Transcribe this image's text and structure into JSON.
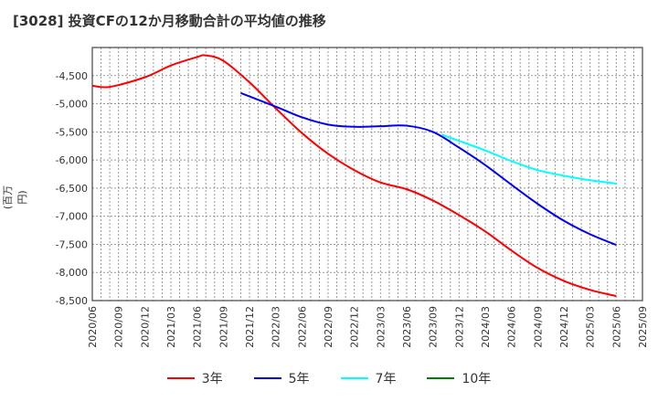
{
  "chart_data": {
    "type": "line",
    "title": "[3028]  投資CFの12か月移動合計の平均値の推移",
    "ylabel": "(百万円)",
    "xlabel": "",
    "ylim": [
      -8500,
      -4000
    ],
    "yticks": [
      -4500,
      -5000,
      -5500,
      -6000,
      -6500,
      -7000,
      -7500,
      -8000,
      -8500
    ],
    "ytick_labels": [
      "-4,500",
      "-5,000",
      "-5,500",
      "-6,000",
      "-6,500",
      "-7,000",
      "-7,500",
      "-8,000",
      "-8,500"
    ],
    "xticks": [
      "2020/06",
      "2020/09",
      "2020/12",
      "2021/03",
      "2021/06",
      "2021/09",
      "2021/12",
      "2022/03",
      "2022/06",
      "2022/09",
      "2022/12",
      "2023/03",
      "2023/06",
      "2023/09",
      "2023/12",
      "2024/03",
      "2024/06",
      "2024/09",
      "2024/12",
      "2025/03",
      "2025/06",
      "2025/09"
    ],
    "grid": true,
    "legend_position": "bottom",
    "series": [
      {
        "name": "3年",
        "color": "#ff0000",
        "x": [
          "2020/06",
          "2020/08",
          "2020/12",
          "2021/03",
          "2021/06",
          "2021/07",
          "2021/09",
          "2021/12",
          "2022/03",
          "2022/06",
          "2022/09",
          "2022/12",
          "2023/03",
          "2023/06",
          "2023/09",
          "2023/12",
          "2024/03",
          "2024/06",
          "2024/09",
          "2024/12",
          "2025/03",
          "2025/06"
        ],
        "y": [
          -4680,
          -4700,
          -4530,
          -4320,
          -4170,
          -4140,
          -4235,
          -4620,
          -5080,
          -5520,
          -5890,
          -6180,
          -6400,
          -6520,
          -6720,
          -6980,
          -7270,
          -7610,
          -7920,
          -8150,
          -8310,
          -8420
        ]
      },
      {
        "name": "5年",
        "color": "#0000ff",
        "x": [
          "2021/11",
          "2022/03",
          "2022/06",
          "2022/09",
          "2022/12",
          "2023/03",
          "2023/06",
          "2023/09",
          "2023/12",
          "2024/03",
          "2024/06",
          "2024/09",
          "2024/12",
          "2025/03",
          "2025/06"
        ],
        "y": [
          -4810,
          -5050,
          -5240,
          -5370,
          -5410,
          -5400,
          -5390,
          -5500,
          -5780,
          -6090,
          -6440,
          -6780,
          -7080,
          -7320,
          -7510
        ]
      },
      {
        "name": "7年",
        "color": "#00ffff",
        "x": [
          "2023/10",
          "2023/12",
          "2024/03",
          "2024/06",
          "2024/09",
          "2024/12",
          "2025/03",
          "2025/06"
        ],
        "y": [
          -5550,
          -5660,
          -5830,
          -6020,
          -6180,
          -6280,
          -6360,
          -6420
        ]
      },
      {
        "name": "10年",
        "color": "#008000",
        "x": [],
        "y": []
      }
    ]
  }
}
